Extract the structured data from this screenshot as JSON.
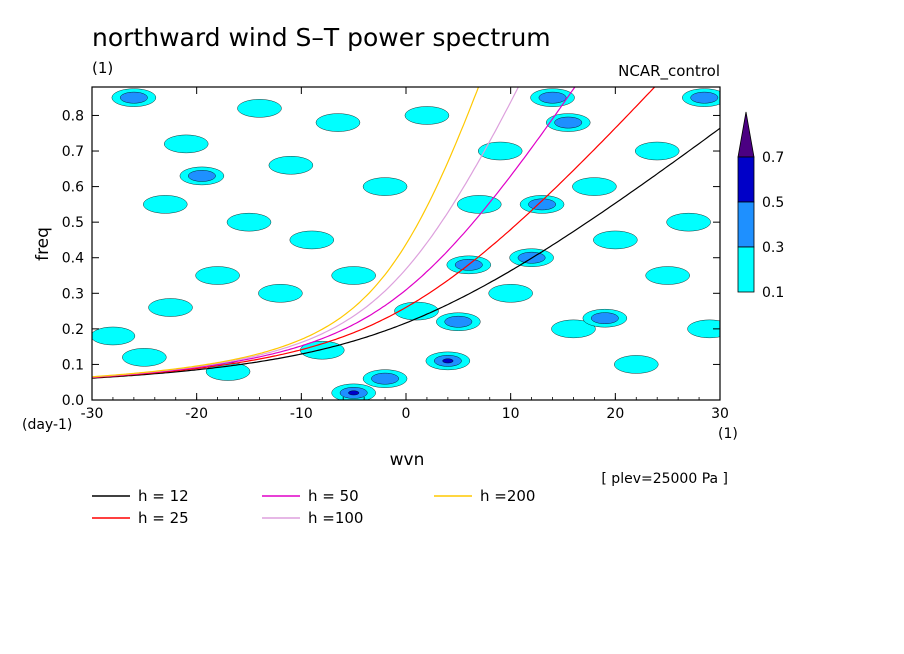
{
  "chart_data": {
    "type": "heatmap",
    "title": "northward wind S–T power spectrum",
    "subtitle_left": "(1)",
    "subtitle_right": "NCAR_control",
    "xlabel": "wvn",
    "ylabel": "freq",
    "x_unit": "(1)",
    "y_unit": "(day-1)",
    "xlim": [
      -30,
      30
    ],
    "ylim": [
      0,
      0.88
    ],
    "xticks": [
      -30,
      -20,
      -10,
      0,
      10,
      20,
      30
    ],
    "yticks": [
      0.0,
      0.1,
      0.2,
      0.3,
      0.4,
      0.5,
      0.6,
      0.7,
      0.8
    ],
    "ytick_labels": [
      "0.0",
      "0.1",
      "0.2",
      "0.3",
      "0.4",
      "0.5",
      "0.6",
      "0.7",
      "0.8"
    ],
    "note": "[ plev=25000 Pa ]",
    "colorbar": {
      "levels": [
        "0.1",
        "0.3",
        "0.5",
        "0.7"
      ],
      "colors": [
        "#00ffff",
        "#1e90ff",
        "#0000c8",
        "#4b0082"
      ]
    },
    "dispersion_curves": [
      {
        "label": "h = 12",
        "h": 12,
        "color": "#000000"
      },
      {
        "label": "h = 25",
        "h": 25,
        "color": "#ff0000"
      },
      {
        "label": "h = 50",
        "h": 50,
        "color": "#e000c8"
      },
      {
        "label": "h =100",
        "h": 100,
        "color": "#dda0dd"
      },
      {
        "label": "h =200",
        "h": 200,
        "color": "#ffc800"
      }
    ],
    "contour_blobs": [
      {
        "x": -28.0,
        "y": 0.18,
        "level": 1
      },
      {
        "x": -26.0,
        "y": 0.85,
        "level": 2
      },
      {
        "x": -25.0,
        "y": 0.12,
        "level": 1
      },
      {
        "x": -23.0,
        "y": 0.55,
        "level": 1
      },
      {
        "x": -22.5,
        "y": 0.26,
        "level": 1
      },
      {
        "x": -21.0,
        "y": 0.72,
        "level": 1
      },
      {
        "x": -19.5,
        "y": 0.63,
        "level": 2
      },
      {
        "x": -18.0,
        "y": 0.35,
        "level": 1
      },
      {
        "x": -17.0,
        "y": 0.08,
        "level": 1
      },
      {
        "x": -15.0,
        "y": 0.5,
        "level": 1
      },
      {
        "x": -14.0,
        "y": 0.82,
        "level": 1
      },
      {
        "x": -12.0,
        "y": 0.3,
        "level": 1
      },
      {
        "x": -11.0,
        "y": 0.66,
        "level": 1
      },
      {
        "x": -9.0,
        "y": 0.45,
        "level": 1
      },
      {
        "x": -8.0,
        "y": 0.14,
        "level": 1
      },
      {
        "x": -6.5,
        "y": 0.78,
        "level": 1
      },
      {
        "x": -5.0,
        "y": 0.02,
        "level": 3
      },
      {
        "x": -5.0,
        "y": 0.35,
        "level": 1
      },
      {
        "x": -2.0,
        "y": 0.06,
        "level": 2
      },
      {
        "x": -2.0,
        "y": 0.6,
        "level": 1
      },
      {
        "x": 1.0,
        "y": 0.25,
        "level": 1
      },
      {
        "x": 2.0,
        "y": 0.8,
        "level": 1
      },
      {
        "x": 4.0,
        "y": 0.11,
        "level": 3
      },
      {
        "x": 5.0,
        "y": 0.22,
        "level": 2
      },
      {
        "x": 6.0,
        "y": 0.38,
        "level": 2
      },
      {
        "x": 7.0,
        "y": 0.55,
        "level": 1
      },
      {
        "x": 9.0,
        "y": 0.7,
        "level": 1
      },
      {
        "x": 10.0,
        "y": 0.3,
        "level": 1
      },
      {
        "x": 12.0,
        "y": 0.4,
        "level": 2
      },
      {
        "x": 13.0,
        "y": 0.55,
        "level": 2
      },
      {
        "x": 14.0,
        "y": 0.85,
        "level": 2
      },
      {
        "x": 15.5,
        "y": 0.78,
        "level": 2
      },
      {
        "x": 16.0,
        "y": 0.2,
        "level": 1
      },
      {
        "x": 18.0,
        "y": 0.6,
        "level": 1
      },
      {
        "x": 19.0,
        "y": 0.23,
        "level": 2
      },
      {
        "x": 20.0,
        "y": 0.45,
        "level": 1
      },
      {
        "x": 22.0,
        "y": 0.1,
        "level": 1
      },
      {
        "x": 24.0,
        "y": 0.7,
        "level": 1
      },
      {
        "x": 25.0,
        "y": 0.35,
        "level": 1
      },
      {
        "x": 27.0,
        "y": 0.5,
        "level": 1
      },
      {
        "x": 28.5,
        "y": 0.85,
        "level": 2
      },
      {
        "x": 29.0,
        "y": 0.2,
        "level": 1
      }
    ]
  }
}
